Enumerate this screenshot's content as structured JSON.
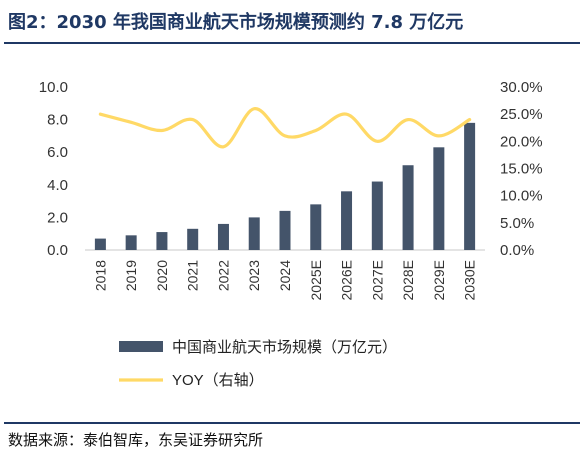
{
  "figure": {
    "title": "图2：2030 年我国商业航天市场规模预测约 7.8 万亿元",
    "source": "数据来源：泰伯智库，东吴证券研究所"
  },
  "colors": {
    "bar": "#44546a",
    "line": "#ffd966",
    "title": "#1f3864",
    "axis_text": "#333333"
  },
  "chart_data": {
    "type": "bar",
    "categories": [
      "2018",
      "2019",
      "2020",
      "2021",
      "2022",
      "2023",
      "2024",
      "2025E",
      "2026E",
      "2027E",
      "2028E",
      "2029E",
      "2030E"
    ],
    "series": [
      {
        "name": "中国商业航天市场规模（万亿元）",
        "type": "bar",
        "axis": "left",
        "values": [
          0.7,
          0.9,
          1.1,
          1.3,
          1.6,
          2.0,
          2.4,
          2.8,
          3.6,
          4.2,
          5.2,
          6.3,
          7.8
        ]
      },
      {
        "name": "YOY（右轴）",
        "type": "line",
        "axis": "right",
        "values": [
          25.0,
          23.5,
          22.0,
          24.0,
          19.0,
          26.0,
          21.0,
          22.0,
          25.0,
          20.0,
          24.0,
          21.0,
          24.0
        ]
      }
    ],
    "left_axis": {
      "ylim": [
        0,
        10
      ],
      "ticks": [
        "0.0",
        "2.0",
        "4.0",
        "6.0",
        "8.0",
        "10.0"
      ]
    },
    "right_axis": {
      "ylim": [
        0,
        30
      ],
      "unit": "%",
      "ticks": [
        "0.0%",
        "5.0%",
        "10.0%",
        "15.0%",
        "20.0%",
        "25.0%",
        "30.0%"
      ]
    },
    "legend_position": "bottom",
    "grid": false
  }
}
